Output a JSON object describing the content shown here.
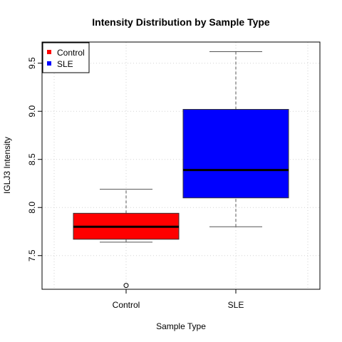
{
  "chart_data": {
    "type": "box",
    "title": "Intensity Distribution by Sample Type",
    "xlabel": "Sample Type",
    "ylabel": "IGLJ3 Intensity",
    "ylim": [
      7.15,
      9.72
    ],
    "yticks": [
      "7.5",
      "8.0",
      "8.5",
      "9.0",
      "9.5"
    ],
    "grid": true,
    "legend_position": "top-left",
    "categories": [
      "Control",
      "SLE"
    ],
    "series": [
      {
        "name": "Control",
        "color": "#ff0000",
        "whisker_low": 7.64,
        "q1": 7.67,
        "median": 7.8,
        "q3": 7.94,
        "whisker_high": 8.19,
        "outliers": [
          7.19
        ]
      },
      {
        "name": "SLE",
        "color": "#0000ff",
        "whisker_low": 7.8,
        "q1": 8.1,
        "median": 8.39,
        "q3": 9.02,
        "whisker_high": 9.62,
        "outliers": []
      }
    ],
    "legend": [
      "Control",
      "SLE"
    ]
  }
}
